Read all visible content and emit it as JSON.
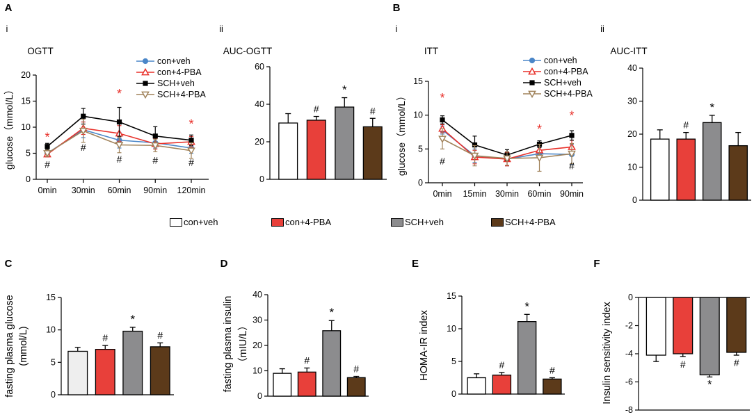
{
  "colors": {
    "con_veh": "#ffffff",
    "con_pba": "#e8403a",
    "sch_veh": "#8c8c8e",
    "sch_pba": "#5c3a1a",
    "line_con_veh": "#4a86c8",
    "line_con_pba": "#e8302a",
    "line_sch_veh": "#000000",
    "line_sch_pba": "#a0825a",
    "star_red": "#e8302a",
    "c_first_bar": "#eeeeee"
  },
  "panel_labels": {
    "A": "A",
    "B": "B",
    "C": "C",
    "D": "D",
    "E": "E",
    "F": "F",
    "ai": "i",
    "aii": "ii",
    "bi": "i",
    "bii": "ii"
  },
  "legend": {
    "items": [
      "con+veh",
      "con+4-PBA",
      "SCH+veh",
      "SCH+4-PBA"
    ]
  },
  "chart_data": [
    {
      "id": "ogtt",
      "type": "line",
      "title": "OGTT",
      "ylabel": "glucose（mmol/L）",
      "xlabel": "",
      "categories": [
        "0min",
        "30min",
        "60min",
        "90min",
        "120min"
      ],
      "ylim": [
        0,
        20
      ],
      "yticks": [
        0,
        5,
        10,
        15,
        20
      ],
      "legend_labels": [
        "con+veh",
        "con+4-PBA",
        "SCH+veh",
        "SCH+4-PBA"
      ],
      "series": [
        {
          "name": "con+veh",
          "values": [
            5.0,
            9.5,
            7.5,
            7.0,
            6.0
          ],
          "err": [
            0.5,
            1.5,
            1.5,
            1.0,
            1.0
          ]
        },
        {
          "name": "con+4-PBA",
          "values": [
            4.8,
            9.8,
            8.8,
            6.8,
            7.2
          ],
          "err": [
            0.5,
            1.2,
            1.5,
            1.0,
            1.0
          ]
        },
        {
          "name": "SCH+veh",
          "values": [
            6.3,
            12.1,
            11.0,
            8.3,
            7.5
          ],
          "err": [
            0.6,
            1.5,
            2.8,
            1.8,
            1.0
          ]
        },
        {
          "name": "SCH+4-PBA",
          "values": [
            5.0,
            9.3,
            6.6,
            6.5,
            5.5
          ],
          "err": [
            0.6,
            2.2,
            1.5,
            1.2,
            1.5
          ]
        }
      ],
      "annotations": [
        "*",
        "#",
        "#",
        "*",
        "#",
        "#",
        "*",
        "#"
      ]
    },
    {
      "id": "auc_ogtt",
      "type": "bar",
      "title": "AUC-OGTT",
      "categories": [
        "con+veh",
        "con+4-PBA",
        "SCH+veh",
        "SCH+4-PBA"
      ],
      "values": [
        30,
        31.5,
        38.5,
        28
      ],
      "err": [
        5,
        2,
        5,
        4.5
      ],
      "ylim": [
        0,
        60
      ],
      "yticks": [
        0,
        20,
        40,
        60
      ],
      "ylabel": "",
      "annotations": [
        "",
        "#",
        "*",
        "#"
      ]
    },
    {
      "id": "itt",
      "type": "line",
      "title": "ITT",
      "ylabel": "glucose（mmol/L）",
      "xlabel": "",
      "categories": [
        "0min",
        "15min",
        "30min",
        "60min",
        "90min"
      ],
      "ylim": [
        0,
        15
      ],
      "yticks": [
        0,
        5,
        10,
        15
      ],
      "legend_labels": [
        "con+veh",
        "con+4-PBA",
        "SCH+veh",
        "SCH+4-PBA"
      ],
      "series": [
        {
          "name": "con+veh",
          "values": [
            7.8,
            4.0,
            3.5,
            4.3,
            4.2
          ],
          "err": [
            0.6,
            1.0,
            1.0,
            0.6,
            1.5
          ]
        },
        {
          "name": "con+4-PBA",
          "values": [
            8.0,
            3.8,
            3.5,
            4.8,
            5.3
          ],
          "err": [
            0.6,
            1.0,
            1.0,
            0.8,
            1.0
          ]
        },
        {
          "name": "SCH+veh",
          "values": [
            9.3,
            5.6,
            4.1,
            5.7,
            7.0
          ],
          "err": [
            0.6,
            1.3,
            0.8,
            0.5,
            0.7
          ]
        },
        {
          "name": "SCH+4-PBA",
          "values": [
            6.5,
            4.0,
            3.6,
            3.7,
            4.3
          ],
          "err": [
            1.5,
            1.5,
            1.0,
            2.0,
            1.5
          ]
        }
      ],
      "annotations": [
        "*",
        "#",
        "*",
        "*",
        "#"
      ]
    },
    {
      "id": "auc_itt",
      "type": "bar",
      "title": "AUC-ITT",
      "categories": [
        "con+veh",
        "con+4-PBA",
        "SCH+veh",
        "SCH+4-PBA"
      ],
      "values": [
        18.5,
        18.5,
        23.5,
        16.5
      ],
      "err": [
        2.8,
        2,
        2.2,
        4
      ],
      "ylim": [
        0,
        40
      ],
      "yticks": [
        0,
        10,
        20,
        30,
        40
      ],
      "ylabel": "",
      "annotations": [
        "",
        "#",
        "*",
        ""
      ]
    },
    {
      "id": "fpg",
      "type": "bar",
      "title": "",
      "categories": [
        "con+veh",
        "con+4-PBA",
        "SCH+veh",
        "SCH+4-PBA"
      ],
      "values": [
        6.7,
        7.0,
        9.8,
        7.4
      ],
      "err": [
        0.6,
        0.6,
        0.6,
        0.6
      ],
      "ylim": [
        0,
        15
      ],
      "yticks": [
        0,
        5,
        10,
        15
      ],
      "ylabel": "fasting plasma glucose",
      "ylabel2": "(mmol/L)",
      "annotations": [
        "",
        "#",
        "*",
        "#"
      ]
    },
    {
      "id": "fpi",
      "type": "bar",
      "title": "",
      "categories": [
        "con+veh",
        "con+4-PBA",
        "SCH+veh",
        "SCH+4-PBA"
      ],
      "values": [
        9,
        9.5,
        25.8,
        7.3
      ],
      "err": [
        1.8,
        1.6,
        4,
        0.5
      ],
      "ylim": [
        0,
        40
      ],
      "yticks": [
        0,
        10,
        20,
        30,
        40
      ],
      "ylabel": "fasting plasma insulin",
      "ylabel2": "（mIU/L）",
      "annotations": [
        "",
        "#",
        "*",
        "#"
      ]
    },
    {
      "id": "homa",
      "type": "bar",
      "title": "",
      "categories": [
        "con+veh",
        "con+4-PBA",
        "SCH+veh",
        "SCH+4-PBA"
      ],
      "values": [
        2.5,
        2.9,
        11.1,
        2.3
      ],
      "err": [
        0.6,
        0.4,
        1.1,
        0.2
      ],
      "ylim": [
        0,
        15
      ],
      "yticks": [
        0,
        5,
        10,
        15
      ],
      "ylabel": "HOMA-IR index",
      "annotations": [
        "",
        "#",
        "*",
        "#"
      ]
    },
    {
      "id": "isi",
      "type": "bar",
      "title": "",
      "categories": [
        "con+veh",
        "con+4-PBA",
        "SCH+veh",
        "SCH+4-PBA"
      ],
      "values": [
        -4.1,
        -4.0,
        -5.5,
        -3.9
      ],
      "err": [
        0.45,
        0.2,
        0.15,
        0.2
      ],
      "ylim": [
        -8,
        0
      ],
      "yticks": [
        0,
        -2,
        -4,
        -6,
        -8
      ],
      "ylabel": "Insulin sensitivity index",
      "annotations": [
        "",
        "#",
        "*",
        "#"
      ]
    }
  ]
}
